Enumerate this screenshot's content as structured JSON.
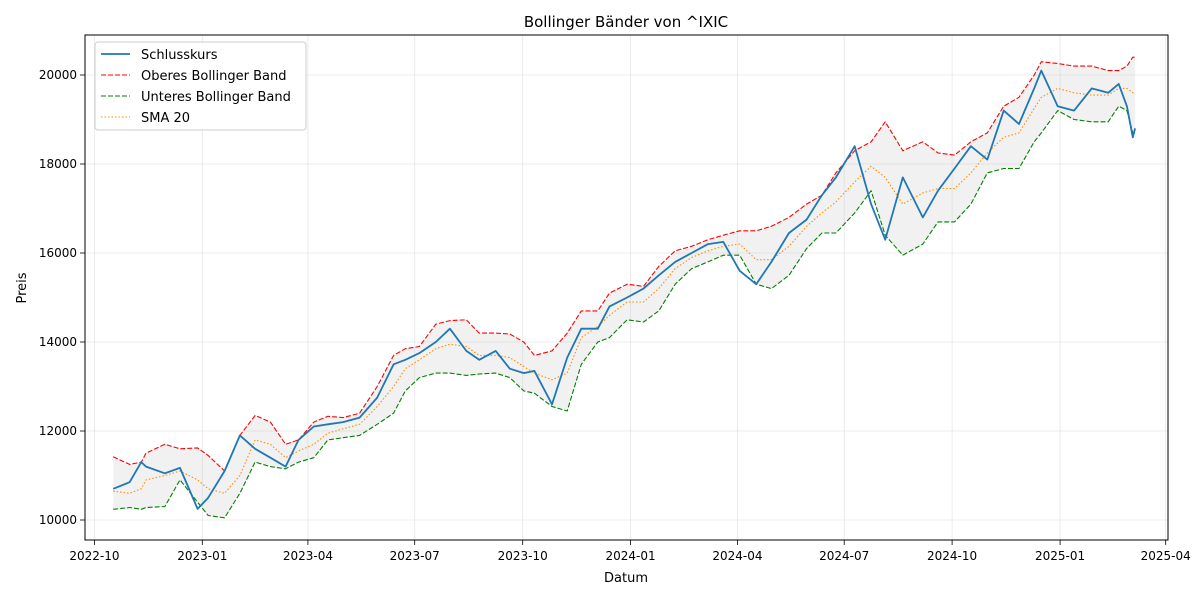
{
  "chart_data": {
    "type": "line",
    "title": "Bollinger Bänder von ^IXIC",
    "xlabel": "Datum",
    "ylabel": "Preis",
    "xlim": [
      "2022-09-23",
      "2025-04-03"
    ],
    "ylim": [
      9550,
      20900
    ],
    "grid": true,
    "legend_position": "top-left",
    "x_ticks": [
      {
        "date": "2022-10-01",
        "label": "2022-10"
      },
      {
        "date": "2023-01-01",
        "label": "2023-01"
      },
      {
        "date": "2023-04-01",
        "label": "2023-04"
      },
      {
        "date": "2023-07-01",
        "label": "2023-07"
      },
      {
        "date": "2023-10-01",
        "label": "2023-10"
      },
      {
        "date": "2024-01-01",
        "label": "2024-01"
      },
      {
        "date": "2024-04-01",
        "label": "2024-04"
      },
      {
        "date": "2024-07-01",
        "label": "2024-07"
      },
      {
        "date": "2024-10-01",
        "label": "2024-10"
      },
      {
        "date": "2025-01-01",
        "label": "2025-01"
      },
      {
        "date": "2025-04-01",
        "label": "2025-04"
      }
    ],
    "y_ticks": [
      {
        "value": 10000,
        "label": "10000"
      },
      {
        "value": 12000,
        "label": "12000"
      },
      {
        "value": 14000,
        "label": "14000"
      },
      {
        "value": 16000,
        "label": "16000"
      },
      {
        "value": 18000,
        "label": "18000"
      },
      {
        "value": 20000,
        "label": "20000"
      }
    ],
    "x": [
      "2022-10-17",
      "2022-10-31",
      "2022-11-10",
      "2022-11-14",
      "2022-11-30",
      "2022-12-13",
      "2022-12-28",
      "2023-01-06",
      "2023-01-20",
      "2023-02-02",
      "2023-02-15",
      "2023-02-28",
      "2023-03-13",
      "2023-03-24",
      "2023-04-06",
      "2023-04-18",
      "2023-05-01",
      "2023-05-15",
      "2023-05-30",
      "2023-06-13",
      "2023-06-23",
      "2023-07-05",
      "2023-07-19",
      "2023-07-31",
      "2023-08-14",
      "2023-08-25",
      "2023-09-08",
      "2023-09-20",
      "2023-10-02",
      "2023-10-11",
      "2023-10-26",
      "2023-11-08",
      "2023-11-20",
      "2023-12-04",
      "2023-12-14",
      "2023-12-29",
      "2024-01-12",
      "2024-01-25",
      "2024-02-08",
      "2024-02-22",
      "2024-03-07",
      "2024-03-20",
      "2024-04-03",
      "2024-04-17",
      "2024-04-30",
      "2024-05-15",
      "2024-05-30",
      "2024-06-12",
      "2024-06-24",
      "2024-07-10",
      "2024-07-24",
      "2024-08-05",
      "2024-08-20",
      "2024-09-06",
      "2024-09-19",
      "2024-10-03",
      "2024-10-17",
      "2024-10-31",
      "2024-11-14",
      "2024-11-27",
      "2024-12-10",
      "2024-12-16",
      "2024-12-30",
      "2025-01-13",
      "2025-01-28",
      "2025-02-11",
      "2025-02-20",
      "2025-02-27",
      "2025-03-04",
      "2025-03-06"
    ],
    "series": [
      {
        "name": "Schlusskurs",
        "color": "#1f77b4",
        "style": "solid",
        "values": [
          10700,
          10850,
          11300,
          11200,
          11050,
          11170,
          10250,
          10500,
          11100,
          11900,
          11600,
          11400,
          11200,
          11800,
          12100,
          12150,
          12200,
          12300,
          12750,
          13500,
          13600,
          13750,
          14000,
          14300,
          13800,
          13600,
          13800,
          13400,
          13300,
          13350,
          12600,
          13650,
          14300,
          14300,
          14800,
          15000,
          15200,
          15500,
          15800,
          16000,
          16200,
          16250,
          15600,
          15300,
          15800,
          16450,
          16750,
          17300,
          17700,
          18400,
          17100,
          16300,
          17700,
          16800,
          17400,
          17900,
          18400,
          18100,
          19200,
          18900,
          19700,
          20100,
          19300,
          19200,
          19700,
          19600,
          19800,
          19300,
          18600,
          18800
        ]
      },
      {
        "name": "Oberes Bollinger Band",
        "color": "#ff0000",
        "style": "dashed",
        "values": [
          11420,
          11250,
          11300,
          11500,
          11700,
          11600,
          11620,
          11450,
          11100,
          11900,
          12350,
          12200,
          11700,
          11800,
          12200,
          12330,
          12300,
          12400,
          13000,
          13700,
          13850,
          13900,
          14400,
          14480,
          14500,
          14200,
          14200,
          14180,
          14000,
          13700,
          13800,
          14200,
          14700,
          14700,
          15100,
          15300,
          15250,
          15700,
          16050,
          16150,
          16300,
          16400,
          16500,
          16500,
          16600,
          16800,
          17100,
          17300,
          17800,
          18300,
          18500,
          18950,
          18300,
          18500,
          18250,
          18200,
          18500,
          18700,
          19300,
          19500,
          20000,
          20300,
          20260,
          20200,
          20200,
          20100,
          20100,
          20200,
          20400,
          20400
        ]
      },
      {
        "name": "Unteres Bollinger Band",
        "color": "#008000",
        "style": "dashed",
        "values": [
          10240,
          10280,
          10240,
          10280,
          10300,
          10900,
          10400,
          10100,
          10050,
          10600,
          11300,
          11200,
          11150,
          11300,
          11400,
          11800,
          11850,
          11900,
          12150,
          12400,
          12900,
          13200,
          13300,
          13300,
          13250,
          13280,
          13300,
          13200,
          12900,
          12850,
          12550,
          12450,
          13500,
          14000,
          14100,
          14500,
          14450,
          14700,
          15300,
          15650,
          15800,
          15950,
          15950,
          15300,
          15200,
          15500,
          16100,
          16450,
          16450,
          16900,
          17400,
          16400,
          15950,
          16200,
          16700,
          16700,
          17100,
          17800,
          17900,
          17900,
          18500,
          18700,
          19200,
          19000,
          18950,
          18950,
          19300,
          19200,
          18700,
          18700
        ]
      },
      {
        "name": "SMA 20",
        "color": "#ff8c00",
        "style": "dotted",
        "values": [
          10650,
          10600,
          10700,
          10900,
          11000,
          11100,
          10900,
          10700,
          10600,
          11000,
          11800,
          11700,
          11400,
          11550,
          11700,
          11950,
          12050,
          12150,
          12550,
          13000,
          13400,
          13600,
          13850,
          13950,
          13900,
          13700,
          13700,
          13650,
          13450,
          13300,
          13150,
          13300,
          14100,
          14350,
          14600,
          14900,
          14900,
          15200,
          15650,
          15900,
          16050,
          16150,
          16200,
          15850,
          15850,
          16150,
          16600,
          16900,
          17150,
          17600,
          17950,
          17700,
          17100,
          17350,
          17450,
          17450,
          17800,
          18250,
          18600,
          18700,
          19250,
          19500,
          19700,
          19600,
          19550,
          19550,
          19700,
          19700,
          19600,
          19600
        ]
      }
    ]
  }
}
